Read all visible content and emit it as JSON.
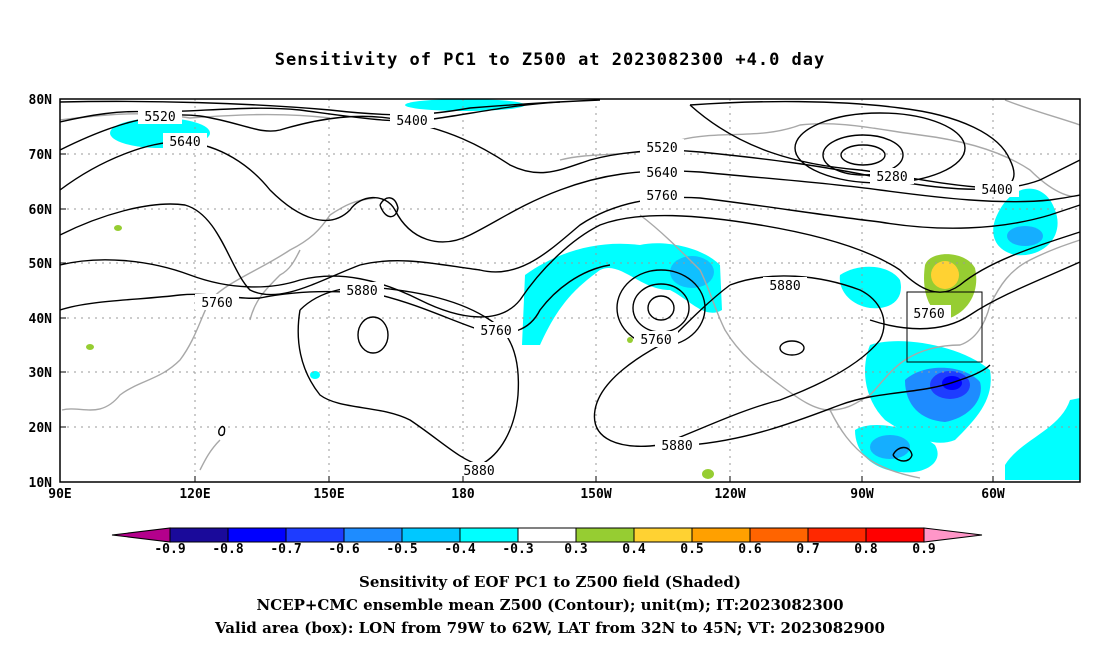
{
  "title": "Sensitivity of PC1 to Z500 at 2023082300 +4.0 day",
  "lat_labels": [
    "80N",
    "70N",
    "60N",
    "50N",
    "40N",
    "30N",
    "20N",
    "10N"
  ],
  "lon_labels": [
    "90E",
    "120E",
    "150E",
    "180",
    "150W",
    "120W",
    "90W",
    "60W"
  ],
  "contour_labels": [
    {
      "text": "5520"
    },
    {
      "text": "5640"
    },
    {
      "text": "5400"
    },
    {
      "text": "5520"
    },
    {
      "text": "5640"
    },
    {
      "text": "5760"
    },
    {
      "text": "5280"
    },
    {
      "text": "5400"
    },
    {
      "text": "5760"
    },
    {
      "text": "5880"
    },
    {
      "text": "5760"
    },
    {
      "text": "5760"
    },
    {
      "text": "5880"
    },
    {
      "text": "5760"
    },
    {
      "text": "5880"
    },
    {
      "text": "5880"
    }
  ],
  "colorbar": {
    "labels": [
      "-0.9",
      "-0.8",
      "-0.7",
      "-0.6",
      "-0.5",
      "-0.4",
      "-0.3",
      "0.3",
      "0.4",
      "0.5",
      "0.6",
      "0.7",
      "0.8",
      "0.9"
    ],
    "colors": [
      "#1a0a9a",
      "#0000ff",
      "#1e3cff",
      "#1e8cff",
      "#00c8ff",
      "#00ffff",
      "#ffffff",
      "#96cd32",
      "#ffd232",
      "#ffa000",
      "#ff6400",
      "#ff2800",
      "#ff0000"
    ],
    "left_tip_color": "#b4008c",
    "right_tip_color": "#ff96c8"
  },
  "footer": {
    "line1": "Sensitivity of EOF PC1 to Z500 field (Shaded)",
    "line2": "NCEP+CMC ensemble mean Z500 (Contour); unit(m); IT:2023082300",
    "line3": "Valid area (box): LON from 79W to 62W, LAT from 32N to 45N; VT: 2023082900"
  },
  "valid_box": {
    "lon_range": [
      "79W",
      "62W"
    ],
    "lat_range": [
      "32N",
      "45N"
    ]
  }
}
